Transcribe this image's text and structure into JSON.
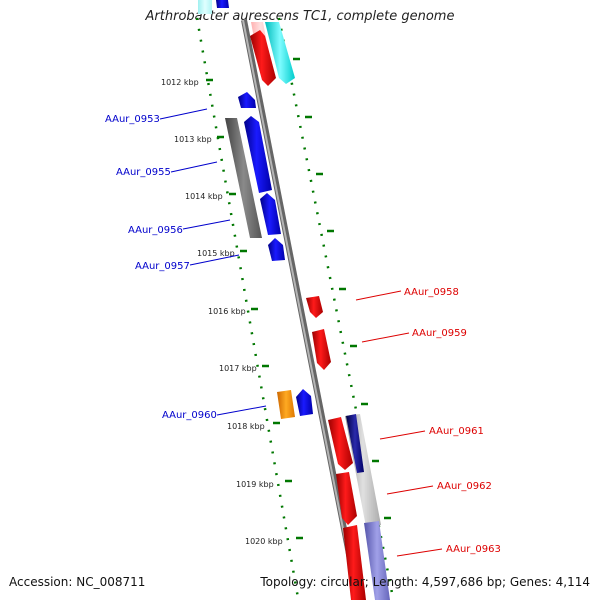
{
  "title": "Arthrobacter aurescens TC1, complete genome",
  "footer": {
    "accession": "Accession: NC_008711",
    "summary": "Topology: circular; Length: 4,597,686 bp; Genes: 4,114"
  },
  "colors": {
    "backbone": "#8a8a8a",
    "forward_label": "#0000cc",
    "reverse_label": "#dd0000",
    "tick": "#006600"
  },
  "kbp_labels": [
    "1012 kbp",
    "1013 kbp",
    "1014 kbp",
    "1015 kbp",
    "1016 kbp",
    "1017 kbp",
    "1018 kbp",
    "1019 kbp",
    "1020 kbp"
  ],
  "genes": [
    {
      "id": "AAur_0953",
      "strand": "+",
      "color": "#0000ee"
    },
    {
      "id": "AAur_0955",
      "strand": "+",
      "color": "#0000ee"
    },
    {
      "id": "AAur_0956",
      "strand": "+",
      "color": "#0000ee"
    },
    {
      "id": "AAur_0957",
      "strand": "+",
      "color": "#0000ee"
    },
    {
      "id": "AAur_0958",
      "strand": "-",
      "color": "#ee0000"
    },
    {
      "id": "AAur_0959",
      "strand": "-",
      "color": "#ee0000"
    },
    {
      "id": "AAur_0960",
      "strand": "+",
      "color": "#0000ee"
    },
    {
      "id": "AAur_0961",
      "strand": "-",
      "color": "#ee0000"
    },
    {
      "id": "AAur_0962",
      "strand": "-",
      "color": "#ee0000"
    },
    {
      "id": "AAur_0963",
      "strand": "-",
      "color": "#ee0000"
    }
  ]
}
